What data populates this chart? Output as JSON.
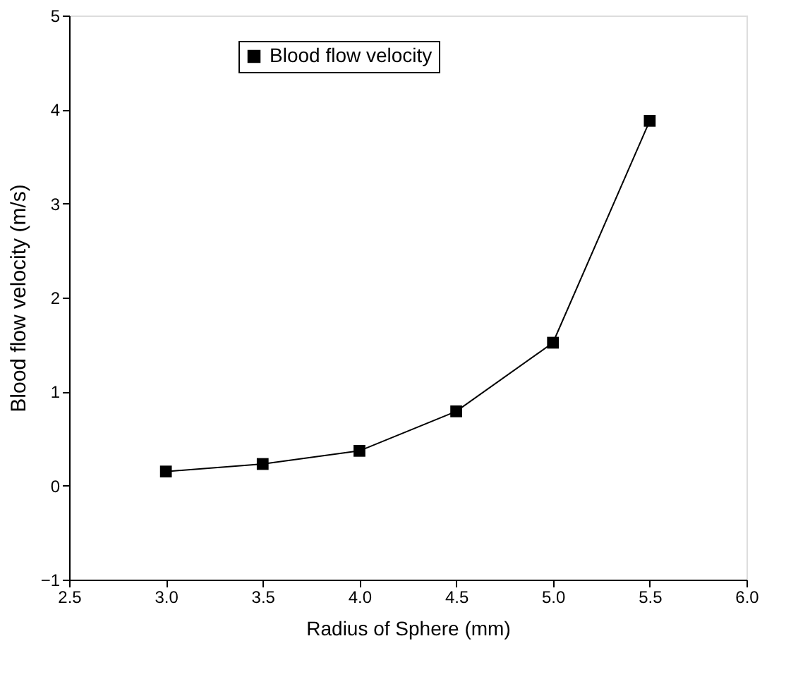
{
  "chart_data": {
    "type": "line",
    "xlabel": "Radius of Sphere (mm)",
    "ylabel": "Blood flow velocity (m/s)",
    "x": [
      3.0,
      3.5,
      4.0,
      4.5,
      5.0,
      5.5
    ],
    "series": [
      {
        "name": "Blood flow velocity",
        "color": "#000000",
        "values": [
          0.15,
          0.23,
          0.37,
          0.79,
          1.52,
          3.88
        ]
      }
    ],
    "xlim": [
      2.5,
      6.0
    ],
    "xticks": [
      2.5,
      {
        "value": 3,
        "label": "3.0"
      },
      3.5,
      {
        "value": 4,
        "label": "4.0"
      },
      4.5,
      {
        "value": 5,
        "label": "5.0"
      },
      5.5,
      {
        "value": 6,
        "label": "6.0"
      }
    ],
    "ylim": [
      -1,
      5
    ],
    "yticks": [
      -1,
      0,
      1,
      2,
      3,
      4,
      5
    ],
    "marker": "square",
    "line_style": "solid",
    "grid": false,
    "legend": "top"
  }
}
